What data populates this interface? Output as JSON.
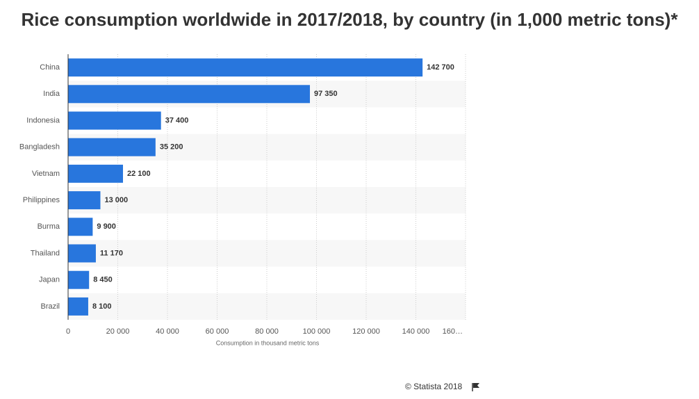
{
  "chart_data": {
    "type": "bar",
    "orientation": "horizontal",
    "title": "Rice consumption worldwide in 2017/2018, by country (in 1,000 metric tons)*",
    "x_label": "Consumption in thousand metric tons",
    "source": "© Statista 2018",
    "categories": [
      "China",
      "India",
      "Indonesia",
      "Bangladesh",
      "Vietnam",
      "Philippines",
      "Burma",
      "Thailand",
      "Japan",
      "Brazil"
    ],
    "values": [
      142700,
      97350,
      37400,
      35200,
      22100,
      13000,
      9900,
      11170,
      8450,
      8100
    ],
    "value_labels": [
      "142 700",
      "97 350",
      "37 400",
      "35 200",
      "22 100",
      "13 000",
      "9 900",
      "11 170",
      "8 450",
      "8 100"
    ],
    "color": "#2876dd",
    "xlim": [
      0,
      160000
    ],
    "xticks": [
      0,
      {
        "value": 20000,
        "label": "20 000"
      },
      {
        "value": 40000,
        "label": "40 000"
      },
      {
        "value": 60000,
        "label": "60 000"
      },
      {
        "value": 80000,
        "label": "80 000"
      },
      {
        "value": 100000,
        "label": "100 000"
      },
      {
        "value": 120000,
        "label": "120 000"
      },
      {
        "value": 140000,
        "label": "140 000"
      },
      {
        "value": 160000,
        "label": "160…"
      }
    ],
    "grid": true
  }
}
